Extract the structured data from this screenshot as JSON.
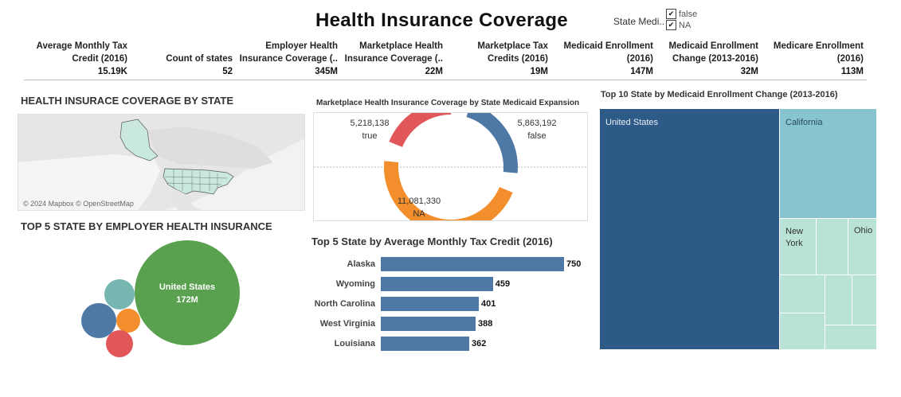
{
  "header": {
    "title": "Health Insurance Coverage",
    "filter_label": "State Medi..",
    "filter_options": [
      {
        "label": "false",
        "checked": true
      },
      {
        "label": "NA",
        "checked": true
      }
    ]
  },
  "kpis": [
    {
      "label": "Average Monthly Tax\nCredit (2016)",
      "value": "15.19K"
    },
    {
      "label": "Count of states",
      "value": "52"
    },
    {
      "label": "Employer Health\nInsurance Coverage (..",
      "value": "345M"
    },
    {
      "label": "Marketplace Health\nInsurance Coverage (..",
      "value": "22M"
    },
    {
      "label": "Marketplace Tax\nCredits (2016)",
      "value": "19M"
    },
    {
      "label": "Medicaid Enrollment\n(2016)",
      "value": "147M"
    },
    {
      "label": "Medicaid Enrollment\nChange (2013-2016)",
      "value": "32M"
    },
    {
      "label": "Medicare Enrollment\n(2016)",
      "value": "113M"
    }
  ],
  "map": {
    "title": "HEALTH INSURACE COVERAGE BY STATE",
    "credit": "© 2024 Mapbox © OpenStreetMap"
  },
  "bubbles_title": "TOP 5 STATE BY EMPLOYER HEALTH INSURANCE",
  "colors": {
    "blue": "#4e79a7",
    "orange": "#f28e2b",
    "red": "#e15759",
    "teal": "#76b7b2",
    "green": "#59a14f",
    "dark_blue": "#2e5a87",
    "light_teal": "#86c5cf",
    "pale_teal": "#b8e3d6"
  },
  "chart_data": [
    {
      "type": "pie",
      "title": "Marketplace Health Insurance Coverage by State Medicaid Expansion",
      "slices": [
        {
          "label": "true",
          "value": 5218138,
          "display": "5,218,138",
          "color": "#e15759"
        },
        {
          "label": "false",
          "value": 5863192,
          "display": "5,863,192",
          "color": "#4e79a7"
        },
        {
          "label": "NA",
          "value": 11081330,
          "display": "11,081,330",
          "color": "#f28e2b"
        }
      ]
    },
    {
      "type": "bar",
      "title": "Top 5 State by Average Monthly Tax Credit (2016)",
      "categories": [
        "Alaska",
        "Wyoming",
        "North Carolina",
        "West Virginia",
        "Louisiana"
      ],
      "values": [
        750,
        459,
        401,
        388,
        362
      ],
      "xlim": [
        0,
        750
      ]
    },
    {
      "type": "scatter",
      "title": "TOP 5 STATE BY EMPLOYER HEALTH INSURANCE",
      "bubbles": [
        {
          "label": "United States",
          "value_label": "172M",
          "color": "#59a14f"
        },
        {
          "label": "",
          "color": "#76b7b2"
        },
        {
          "label": "",
          "color": "#4e79a7"
        },
        {
          "label": "",
          "color": "#f28e2b"
        },
        {
          "label": "",
          "color": "#e15759"
        }
      ]
    },
    {
      "type": "heatmap",
      "title": "Top 10  State by Medicaid Enrollment Change (2013-2016)",
      "cells": [
        {
          "label": "United States"
        },
        {
          "label": "California"
        },
        {
          "label": "New York"
        },
        {
          "label": "Ohio"
        },
        {
          "label": ""
        },
        {
          "label": ""
        },
        {
          "label": ""
        },
        {
          "label": ""
        },
        {
          "label": ""
        },
        {
          "label": ""
        }
      ]
    }
  ]
}
